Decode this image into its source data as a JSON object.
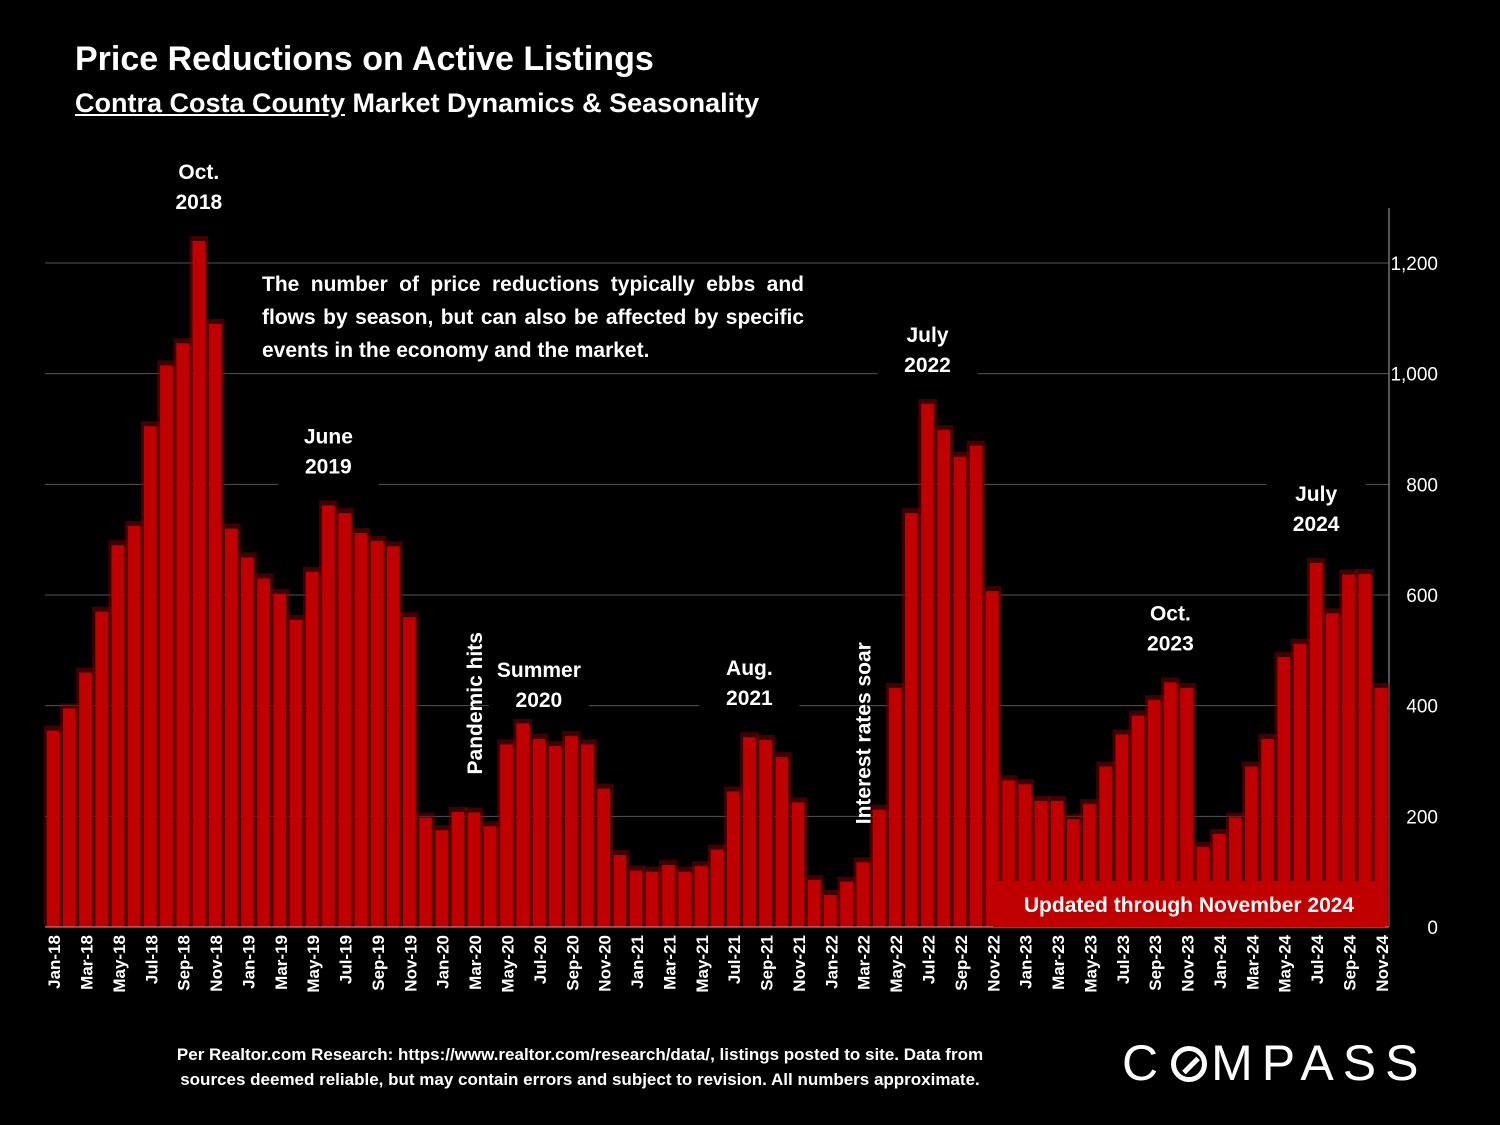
{
  "header": {
    "title": "Price Reductions on Active Listings",
    "subtitle_county": "Contra Costa County",
    "subtitle_rest": "Market Dynamics & Seasonality"
  },
  "description": "The number of price reductions typically ebbs and flows by season, but can also be affected by specific events in the economy and the market.",
  "footnote_line1": "Per Realtor.com Research:  https://www.realtor.com/research/data/, listings posted to site. Data from",
  "footnote_line2": "sources deemed reliable, but may contain errors and subject to revision. All numbers approximate.",
  "logo": {
    "text_left": "C",
    "text_right": "MPASS"
  },
  "colors": {
    "background": "#000000",
    "bar": "#c00000",
    "bar_glow": "#7a0000",
    "badge": "#c00000",
    "grid": "#555555"
  },
  "chart_data": {
    "type": "bar",
    "ylim": [
      0,
      1300
    ],
    "yticks": [
      0,
      200,
      400,
      600,
      800,
      1000,
      1200
    ],
    "ytick_labels": [
      "0",
      "200",
      "400",
      "600",
      "800",
      "1,000",
      "1,200"
    ],
    "y_axis_side": "right",
    "grid": true,
    "categories": [
      "Jan-18",
      "Feb-18",
      "Mar-18",
      "Apr-18",
      "May-18",
      "Jun-18",
      "Jul-18",
      "Aug-18",
      "Sep-18",
      "Oct-18",
      "Nov-18",
      "Dec-18",
      "Jan-19",
      "Feb-19",
      "Mar-19",
      "Apr-19",
      "May-19",
      "Jun-19",
      "Jul-19",
      "Aug-19",
      "Sep-19",
      "Oct-19",
      "Nov-19",
      "Dec-19",
      "Jan-20",
      "Feb-20",
      "Mar-20",
      "Apr-20",
      "May-20",
      "Jun-20",
      "Jul-20",
      "Aug-20",
      "Sep-20",
      "Oct-20",
      "Nov-20",
      "Dec-20",
      "Jan-21",
      "Feb-21",
      "Mar-21",
      "Apr-21",
      "May-21",
      "Jun-21",
      "Jul-21",
      "Aug-21",
      "Sep-21",
      "Oct-21",
      "Nov-21",
      "Dec-21",
      "Jan-22",
      "Feb-22",
      "Mar-22",
      "Apr-22",
      "May-22",
      "Jun-22",
      "Jul-22",
      "Aug-22",
      "Sep-22",
      "Oct-22",
      "Nov-22",
      "Dec-22",
      "Jan-23",
      "Feb-23",
      "Mar-23",
      "Apr-23",
      "May-23",
      "Jun-23",
      "Jul-23",
      "Aug-23",
      "Sep-23",
      "Oct-23",
      "Nov-23",
      "Dec-23",
      "Jan-24",
      "Feb-24",
      "Mar-24",
      "Apr-24",
      "May-24",
      "Jun-24",
      "Jul-24",
      "Aug-24",
      "Sep-24",
      "Oct-24",
      "Nov-24"
    ],
    "values": [
      355,
      395,
      460,
      570,
      690,
      725,
      905,
      1015,
      1055,
      1240,
      1090,
      720,
      668,
      630,
      602,
      555,
      642,
      762,
      748,
      712,
      698,
      688,
      560,
      198,
      175,
      208,
      207,
      182,
      330,
      368,
      340,
      327,
      345,
      330,
      250,
      130,
      102,
      100,
      112,
      100,
      110,
      140,
      245,
      343,
      338,
      307,
      225,
      85,
      58,
      82,
      117,
      212,
      432,
      748,
      945,
      898,
      850,
      870,
      607,
      265,
      258,
      228,
      228,
      195,
      222,
      290,
      348,
      382,
      410,
      442,
      432,
      145,
      168,
      198,
      290,
      340,
      488,
      512,
      658,
      567,
      637,
      638,
      432
    ],
    "tick_labels": [
      "Jan-18",
      "Mar-18",
      "May-18",
      "Jul-18",
      "Sep-18",
      "Nov-18",
      "Jan-19",
      "Mar-19",
      "May-19",
      "Jul-19",
      "Sep-19",
      "Nov-19",
      "Jan-20",
      "Mar-20",
      "May-20",
      "Jul-20",
      "Sep-20",
      "Nov-20",
      "Jan-21",
      "Mar-21",
      "May-21",
      "Jul-21",
      "Sep-21",
      "Nov-21",
      "Jan-22",
      "Mar-22",
      "May-22",
      "Jul-22",
      "Sep-22",
      "Nov-22",
      "Jan-23",
      "Mar-23",
      "May-23",
      "Jul-23",
      "Sep-23",
      "Nov-23",
      "Jan-24",
      "Mar-24",
      "May-24",
      "Jul-24",
      "Sep-24",
      "Nov-24"
    ],
    "annotations": [
      {
        "lines": [
          "Oct.",
          "2018"
        ],
        "category": "Oct-18"
      },
      {
        "lines": [
          "June",
          "2019"
        ],
        "category": "Jun-19"
      },
      {
        "lines": [
          "Pandemic hits"
        ],
        "category": "Mar-20",
        "vertical": true
      },
      {
        "lines": [
          "Summer",
          "2020"
        ],
        "category": "Jul-20"
      },
      {
        "lines": [
          "Aug.",
          "2021"
        ],
        "category": "Aug-21"
      },
      {
        "lines": [
          "Interest rates soar"
        ],
        "category": "Mar-22",
        "vertical": true
      },
      {
        "lines": [
          "July",
          "2022"
        ],
        "category": "Jul-22"
      },
      {
        "lines": [
          "Oct.",
          "2023"
        ],
        "category": "Oct-23"
      },
      {
        "lines": [
          "July",
          "2024"
        ],
        "category": "Jul-24"
      }
    ],
    "badge": "Updated through November 2024"
  }
}
